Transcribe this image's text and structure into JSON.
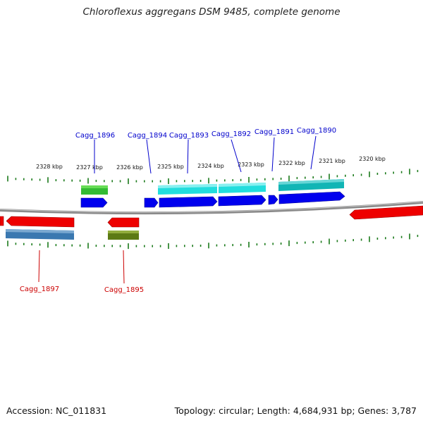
{
  "title": "Chloroflexus aggregans DSM 9485, complete genome",
  "footer": {
    "accession": "Accession: NC_011831",
    "summary": "Topology: circular; Length: 4,684,931 bp; Genes: 3,787"
  },
  "colors": {
    "forward_label": "#0000cc",
    "reverse_label": "#cc0000",
    "tick": "#1a7a1a",
    "backbone": "#8a8a8a"
  },
  "scale": {
    "unit": "kbp",
    "ticks": [
      "2328 kbp",
      "2327 kbp",
      "2326 kbp",
      "2325 kbp",
      "2324 kbp",
      "2323 kbp",
      "2322 kbp",
      "2321 kbp",
      "2320 kbp"
    ]
  },
  "gene_labels": [
    {
      "name": "Cagg_1896",
      "strand": "forward"
    },
    {
      "name": "Cagg_1894",
      "strand": "forward"
    },
    {
      "name": "Cagg_1893",
      "strand": "forward"
    },
    {
      "name": "Cagg_1892",
      "strand": "forward"
    },
    {
      "name": "Cagg_1891",
      "strand": "forward"
    },
    {
      "name": "Cagg_1890",
      "strand": "forward"
    },
    {
      "name": "Cagg_1897",
      "strand": "reverse"
    },
    {
      "name": "Cagg_1895",
      "strand": "reverse"
    }
  ]
}
